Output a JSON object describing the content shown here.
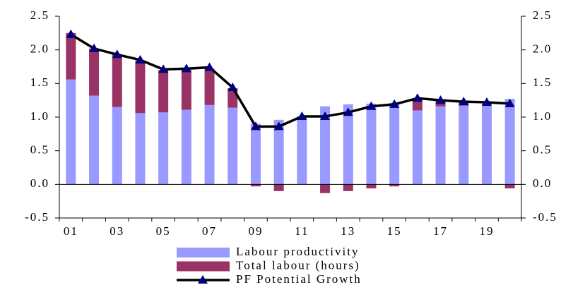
{
  "chart_data": {
    "type": "bar",
    "categories": [
      "01",
      null,
      "03",
      null,
      "05",
      null,
      "07",
      null,
      "09",
      null,
      "11",
      null,
      "13",
      null,
      "15",
      null,
      "17",
      null,
      "19",
      null
    ],
    "series": [
      {
        "name": "Labour productivity",
        "color": "#9999ff",
        "type": "bar",
        "values": [
          1.56,
          1.32,
          1.15,
          1.06,
          1.07,
          1.11,
          1.18,
          1.14,
          0.9,
          0.96,
          1.01,
          1.16,
          1.19,
          1.2,
          1.21,
          1.1,
          1.16,
          1.17,
          1.19,
          1.27
        ]
      },
      {
        "name": "Total labour (hours)",
        "color": "#993366",
        "type": "bar",
        "values": [
          0.69,
          0.7,
          0.78,
          0.78,
          0.63,
          0.59,
          0.54,
          0.29,
          -0.03,
          -0.1,
          0,
          -0.13,
          -0.1,
          -0.06,
          -0.03,
          0.17,
          0.09,
          0.05,
          0.01,
          -0.06
        ]
      },
      {
        "name": "PF Potential Growth",
        "color": "#000000",
        "marker_color": "#000080",
        "type": "line",
        "values": [
          2.23,
          2.02,
          1.93,
          1.85,
          1.71,
          1.72,
          1.74,
          1.44,
          0.86,
          0.86,
          1.01,
          1.01,
          1.07,
          1.16,
          1.19,
          1.28,
          1.25,
          1.23,
          1.22,
          1.2
        ]
      }
    ],
    "stacked": true,
    "ylim": [
      -0.5,
      2.5
    ],
    "yticks": [
      -0.5,
      {
        "value": 0,
        "label": "0.0"
      },
      0.5,
      {
        "value": 1,
        "label": "1.0"
      },
      1.5,
      {
        "value": 2,
        "label": "2.0"
      },
      2.5
    ],
    "y2lim": [
      -0.5,
      2.5
    ],
    "y2ticks": [
      -0.5,
      {
        "value": 0,
        "label": "0.0"
      },
      0.5,
      {
        "value": 1,
        "label": "1.0"
      },
      1.5,
      {
        "value": 2,
        "label": "2.0"
      },
      2.5
    ],
    "legend": "bottom"
  }
}
